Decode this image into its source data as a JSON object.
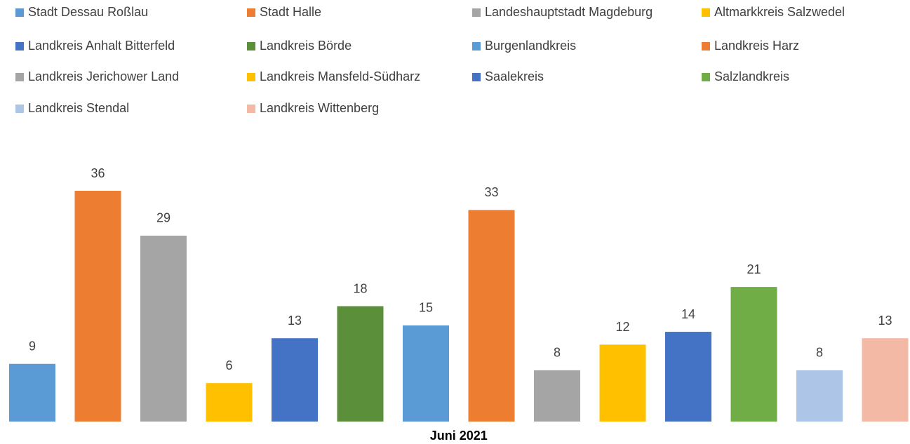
{
  "chart_data": {
    "type": "bar",
    "categories": [
      "Juni 2021"
    ],
    "series": [
      {
        "name": "Stadt Dessau Roßlau",
        "color": "#5b9bd5",
        "values": [
          9
        ]
      },
      {
        "name": "Stadt Halle",
        "color": "#ed7d31",
        "values": [
          36
        ]
      },
      {
        "name": "Landeshauptstadt Magdeburg",
        "color": "#a5a5a5",
        "values": [
          29
        ]
      },
      {
        "name": "Altmarkkreis Salzwedel",
        "color": "#ffc000",
        "values": [
          6
        ]
      },
      {
        "name": "Landkreis Anhalt Bitterfeld",
        "color": "#4472c4",
        "values": [
          13
        ]
      },
      {
        "name": "Landkreis Börde",
        "color": "#5b8f3a",
        "values": [
          18
        ]
      },
      {
        "name": "Burgenlandkreis",
        "color": "#5b9bd5",
        "values": [
          15
        ]
      },
      {
        "name": "Landkreis Harz",
        "color": "#ed7d31",
        "values": [
          33
        ]
      },
      {
        "name": "Landkreis Jerichower Land",
        "color": "#a5a5a5",
        "values": [
          8
        ]
      },
      {
        "name": "Landkreis Mansfeld-Südharz",
        "color": "#ffc000",
        "values": [
          12
        ]
      },
      {
        "name": "Saalekreis",
        "color": "#4472c4",
        "values": [
          14
        ]
      },
      {
        "name": "Salzlandkreis",
        "color": "#70ad47",
        "values": [
          21
        ]
      },
      {
        "name": "Landkreis Stendal",
        "color": "#adc5e7",
        "values": [
          8
        ]
      },
      {
        "name": "Landkreis Wittenberg",
        "color": "#f4b9a4",
        "values": [
          13
        ]
      }
    ]
  }
}
